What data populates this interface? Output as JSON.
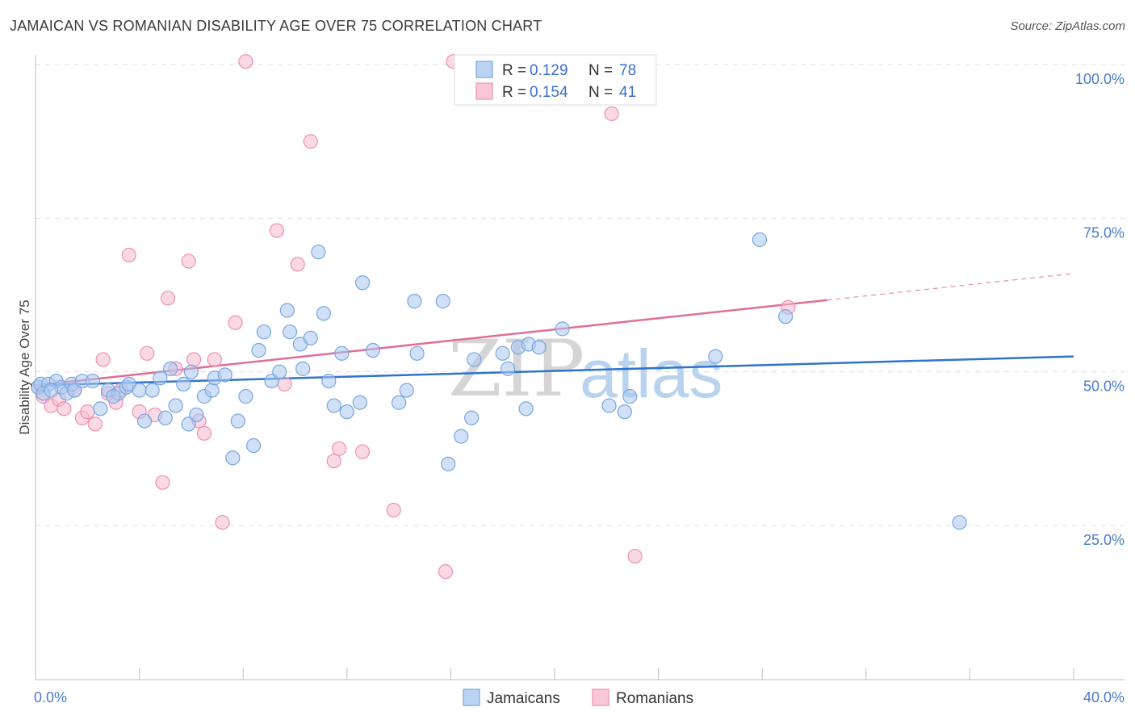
{
  "chart_data": {
    "type": "scatter",
    "title": "JAMAICAN VS ROMANIAN DISABILITY AGE OVER 75 CORRELATION CHART",
    "source": "Source: ZipAtlas.com",
    "xlabel": "",
    "ylabel": "Disability Age Over 75",
    "xlim": [
      0,
      40
    ],
    "ylim": [
      0,
      105
    ],
    "x_tick_labels": [
      "0.0%",
      "40.0%"
    ],
    "y_ticks": [
      25,
      50,
      75,
      100
    ],
    "y_tick_labels": [
      "25.0%",
      "50.0%",
      "75.0%",
      "100.0%"
    ],
    "grid": true,
    "watermark": {
      "zip": "ZIP",
      "atlas": "atlas"
    },
    "legend": {
      "r_label": "R =",
      "n_label": "N =",
      "entries": [
        {
          "name": "Jamaicans",
          "r": "0.129",
          "n": "78"
        },
        {
          "name": "Romanians",
          "r": "0.154",
          "n": "41"
        }
      ]
    },
    "colors": {
      "jamaicans_fill": "#a9c8f0",
      "jamaicans_stroke": "#7aa6e0",
      "jamaicans_line": "#2f74cc",
      "romanians_fill": "#f7b9cd",
      "romanians_stroke": "#ee90b0",
      "romanians_line": "#e06e98"
    },
    "series": [
      {
        "name": "Jamaicans",
        "trend": {
          "x0": 0,
          "y0": 47.8,
          "x1": 40,
          "y1": 52.5,
          "dashed_from": null
        },
        "points": [
          [
            0.1,
            47.5
          ],
          [
            0.2,
            48.0
          ],
          [
            0.5,
            48.0
          ],
          [
            0.8,
            48.5
          ],
          [
            1.0,
            47.5
          ],
          [
            1.2,
            46.5
          ],
          [
            1.4,
            48.0
          ],
          [
            1.5,
            47.0
          ],
          [
            1.8,
            48.5
          ],
          [
            2.2,
            48.5
          ],
          [
            2.5,
            44.0
          ],
          [
            2.8,
            47.0
          ],
          [
            3.2,
            46.5
          ],
          [
            3.5,
            47.5
          ],
          [
            3.6,
            48.0
          ],
          [
            4.0,
            47.0
          ],
          [
            4.2,
            42.0
          ],
          [
            4.5,
            47.0
          ],
          [
            4.8,
            49.0
          ],
          [
            5.0,
            42.5
          ],
          [
            5.2,
            50.5
          ],
          [
            5.4,
            44.5
          ],
          [
            5.7,
            48.0
          ],
          [
            5.9,
            41.5
          ],
          [
            6.0,
            50.0
          ],
          [
            6.2,
            43.0
          ],
          [
            6.5,
            46.0
          ],
          [
            6.8,
            47.0
          ],
          [
            6.9,
            49.0
          ],
          [
            7.3,
            49.5
          ],
          [
            7.6,
            36.0
          ],
          [
            7.8,
            42.0
          ],
          [
            8.1,
            46.0
          ],
          [
            8.4,
            38.0
          ],
          [
            8.6,
            53.5
          ],
          [
            8.8,
            56.5
          ],
          [
            9.1,
            48.5
          ],
          [
            9.4,
            50.0
          ],
          [
            9.7,
            60.0
          ],
          [
            9.8,
            56.5
          ],
          [
            10.2,
            54.5
          ],
          [
            10.3,
            50.5
          ],
          [
            10.6,
            55.5
          ],
          [
            10.9,
            69.5
          ],
          [
            11.1,
            59.5
          ],
          [
            11.3,
            48.5
          ],
          [
            11.5,
            44.5
          ],
          [
            11.8,
            53.0
          ],
          [
            12.0,
            43.5
          ],
          [
            12.5,
            45.0
          ],
          [
            12.6,
            64.5
          ],
          [
            13.0,
            53.5
          ],
          [
            14.0,
            45.0
          ],
          [
            14.3,
            47.0
          ],
          [
            14.6,
            61.5
          ],
          [
            14.7,
            53.0
          ],
          [
            15.7,
            61.5
          ],
          [
            15.9,
            35.0
          ],
          [
            16.4,
            39.5
          ],
          [
            16.8,
            42.5
          ],
          [
            16.9,
            52.0
          ],
          [
            18.0,
            53.0
          ],
          [
            18.2,
            50.5
          ],
          [
            18.6,
            54.0
          ],
          [
            18.9,
            44.0
          ],
          [
            19.0,
            54.5
          ],
          [
            19.4,
            54.0
          ],
          [
            20.3,
            57.0
          ],
          [
            22.1,
            44.5
          ],
          [
            22.7,
            43.5
          ],
          [
            22.9,
            46.0
          ],
          [
            26.2,
            52.5
          ],
          [
            27.9,
            71.5
          ],
          [
            28.9,
            59.0
          ],
          [
            35.6,
            25.5
          ],
          [
            0.3,
            46.5
          ],
          [
            0.6,
            47.0
          ],
          [
            3.0,
            46.0
          ]
        ]
      },
      {
        "name": "Romanians",
        "trend": {
          "x0": 0,
          "y0": 47.8,
          "x1": 40,
          "y1": 66.0,
          "dashed_from": 30.5
        },
        "points": [
          [
            0.1,
            47.5
          ],
          [
            0.3,
            46.0
          ],
          [
            0.6,
            44.5
          ],
          [
            0.9,
            45.5
          ],
          [
            1.1,
            44.0
          ],
          [
            1.5,
            47.0
          ],
          [
            1.8,
            42.5
          ],
          [
            2.0,
            43.5
          ],
          [
            2.3,
            41.5
          ],
          [
            2.6,
            52.0
          ],
          [
            2.8,
            46.5
          ],
          [
            3.1,
            45.0
          ],
          [
            3.3,
            47.0
          ],
          [
            3.6,
            69.0
          ],
          [
            4.0,
            43.5
          ],
          [
            4.3,
            53.0
          ],
          [
            4.6,
            43.0
          ],
          [
            4.9,
            32.0
          ],
          [
            5.1,
            62.0
          ],
          [
            5.4,
            50.5
          ],
          [
            5.9,
            68.0
          ],
          [
            6.1,
            52.0
          ],
          [
            6.3,
            42.0
          ],
          [
            6.5,
            40.0
          ],
          [
            6.9,
            52.0
          ],
          [
            7.2,
            25.5
          ],
          [
            7.7,
            58.0
          ],
          [
            8.1,
            100.5
          ],
          [
            9.3,
            73.0
          ],
          [
            9.6,
            48.0
          ],
          [
            10.1,
            67.5
          ],
          [
            10.6,
            87.5
          ],
          [
            11.5,
            35.5
          ],
          [
            11.7,
            37.5
          ],
          [
            12.6,
            37.0
          ],
          [
            13.8,
            27.5
          ],
          [
            15.8,
            17.5
          ],
          [
            16.1,
            100.5
          ],
          [
            22.2,
            92.0
          ],
          [
            23.1,
            20.0
          ],
          [
            29.0,
            60.5
          ]
        ]
      }
    ]
  }
}
